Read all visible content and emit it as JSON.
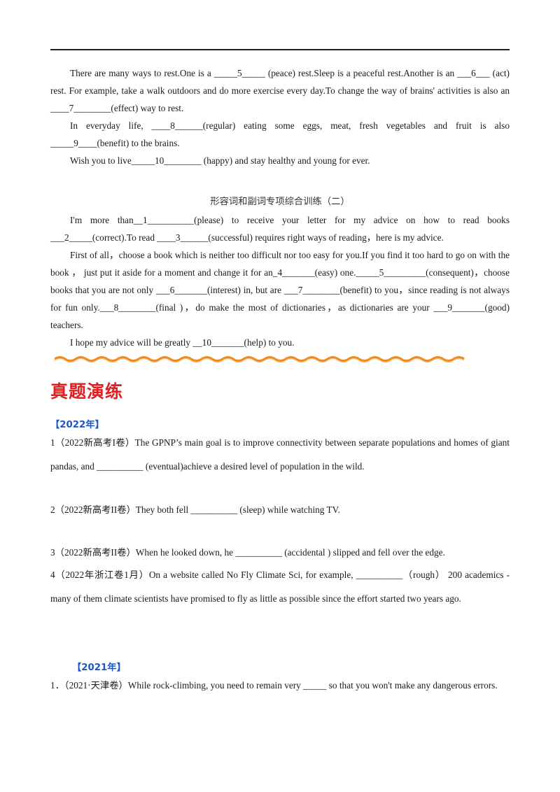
{
  "section1": {
    "lines": [
      "There are many ways to rest.One is a _____5_____ (peace) rest.Sleep is a peaceful rest.Another is an ___6___ (act) rest. For example, take a walk outdoors and do more exercise every day.To change the way of brains' activities is also an ____7________(effect) way to rest.",
      "In everyday life, ____8______(regular) eating some eggs, meat, fresh vegetables and fruit is also _____9____(benefit) to the brains.",
      "Wish you to live_____10________ (happy) and stay healthy and young for ever."
    ]
  },
  "section2": {
    "title": "形容词和副词专项综合训练（二）",
    "lines": [
      "I'm more than__1__________(please) to receive your letter for my advice  on  how to read books ___2_____(correct).To read ____3______(successful) requires right ways of reading，here is my advice.",
      "First of all，choose a book which is neither too difficult nor too easy for you.If you find it too  hard to go on with the book ， just put it aside for a moment and change it for an_4_______(easy) one._____5_________(consequent)，choose books that you are not only ___6_______(interest) in, but are ___7________(benefit) to you，since reading is not always for fun only.___8________(final )，do make the most of dictionaries，as dictionaries are your ___9_______(good)  teachers.",
      "I hope my advice will be  greatly __10_______(help) to you."
    ]
  },
  "exam": {
    "heading": "真题演练",
    "year2022": "【2022年】",
    "year2021": "【2021年】",
    "q1": "1（2022新高考I卷）The GPNP’s main goal is to improve connectivity between separate populations and homes of giant pandas, and __________  (eventual)achieve a desired level of population in the wild.",
    "q2": "2（2022新高考II卷）They both fell  __________  (sleep) while watching TV.",
    "q3": "3（2022新高考II卷）When he looked down, he __________ (accidental ) slipped and fell over the edge.",
    "q4": "4（2022年浙江卷1月）On a website called No Fly Climate Sci, for example,  __________（rough）  200 academics - many of them climate scientists have promised to fly as little as possible since the effort started two years ago.",
    "q5": "1．（2021·天津卷）While rock-climbing, you need to remain very _____ so that you won't make any dangerous errors."
  },
  "colors": {
    "heading": "#e02020",
    "year_tag": "#1a56c9",
    "wave": "#f28a1c"
  }
}
